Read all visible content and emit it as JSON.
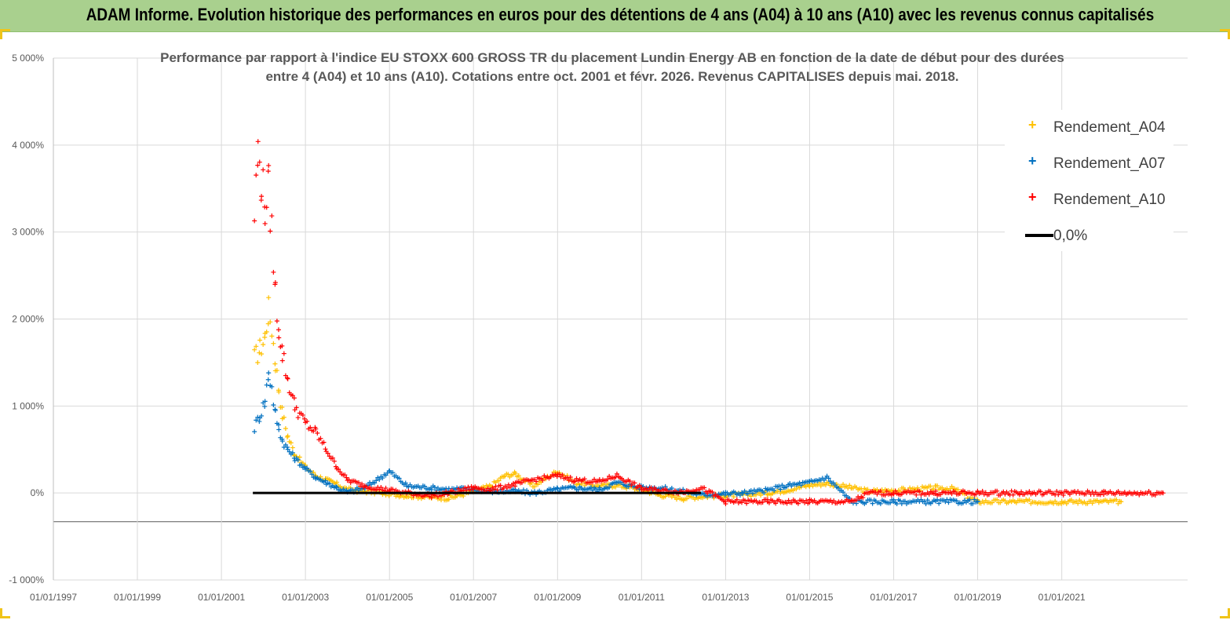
{
  "header": {
    "title": "ADAM Informe. Evolution historique des performances en euros pour des détentions de 4 ans (A04) à 10 ans (A10) avec les revenus connus capitalisés"
  },
  "chart_data": {
    "type": "scatter",
    "title_line1": "Performance par rapport à l'indice EU STOXX 600 GROSS TR  du placement Lundin Energy AB en fonction de la date de début pour des durées",
    "title_line2": "entre 4 (A04) et 10 ans (A10). Cotations entre oct. 2001 et févr. 2026. Revenus CAPITALISES depuis mai. 2018.",
    "xlabel": "",
    "ylabel": "",
    "xlim": [
      "1997-01-01",
      "2023-12-31"
    ],
    "ylim": [
      -1000,
      5000
    ],
    "grid": true,
    "x_ticks": [
      "01/01/1997",
      "01/01/1999",
      "01/01/2001",
      "01/01/2003",
      "01/01/2005",
      "01/01/2007",
      "01/01/2009",
      "01/01/2011",
      "01/01/2013",
      "01/01/2015",
      "01/01/2017",
      "01/01/2019",
      "01/01/2021"
    ],
    "y_ticks": [
      "-1 000%",
      "0%",
      "1 000%",
      "2 000%",
      "3 000%",
      "4 000%",
      "5 000%"
    ],
    "legend_position": "top-right",
    "series": [
      {
        "name": "Rendement_A04",
        "color": "#ffc000",
        "marker": "+",
        "points": [
          [
            "2001-10-15",
            1550
          ],
          [
            "2001-12-01",
            1650
          ],
          [
            "2002-01-15",
            1800
          ],
          [
            "2002-02-15",
            2100
          ],
          [
            "2002-03-15",
            1900
          ],
          [
            "2002-04-15",
            1500
          ],
          [
            "2002-05-15",
            1200
          ],
          [
            "2002-06-15",
            900
          ],
          [
            "2002-08-01",
            650
          ],
          [
            "2002-10-01",
            450
          ],
          [
            "2003-01-01",
            300
          ],
          [
            "2003-04-01",
            200
          ],
          [
            "2003-07-01",
            150
          ],
          [
            "2003-10-01",
            100
          ],
          [
            "2004-01-01",
            40
          ],
          [
            "2004-06-01",
            20
          ],
          [
            "2005-01-01",
            -10
          ],
          [
            "2005-06-01",
            -30
          ],
          [
            "2006-01-01",
            -50
          ],
          [
            "2006-06-01",
            -60
          ],
          [
            "2007-01-01",
            20
          ],
          [
            "2007-06-01",
            80
          ],
          [
            "2007-10-01",
            200
          ],
          [
            "2008-01-01",
            220
          ],
          [
            "2008-06-01",
            80
          ],
          [
            "2009-01-01",
            250
          ],
          [
            "2009-06-01",
            120
          ],
          [
            "2010-01-01",
            80
          ],
          [
            "2010-06-01",
            90
          ],
          [
            "2011-01-01",
            40
          ],
          [
            "2011-06-01",
            -20
          ],
          [
            "2012-01-01",
            -60
          ],
          [
            "2012-06-01",
            -40
          ],
          [
            "2013-01-01",
            -30
          ],
          [
            "2013-06-01",
            -20
          ],
          [
            "2014-01-01",
            0
          ],
          [
            "2014-06-01",
            30
          ],
          [
            "2015-01-01",
            90
          ],
          [
            "2015-06-01",
            110
          ],
          [
            "2016-01-01",
            60
          ],
          [
            "2016-06-01",
            20
          ],
          [
            "2017-01-01",
            30
          ],
          [
            "2017-06-01",
            40
          ],
          [
            "2018-01-01",
            60
          ],
          [
            "2018-06-01",
            50
          ],
          [
            "2019-01-01",
            -100
          ],
          [
            "2020-01-01",
            -100
          ],
          [
            "2021-01-01",
            -100
          ],
          [
            "2022-06-01",
            -100
          ]
        ]
      },
      {
        "name": "Rendement_A07",
        "color": "#0070c0",
        "marker": "+",
        "points": [
          [
            "2001-10-15",
            750
          ],
          [
            "2001-12-01",
            900
          ],
          [
            "2002-01-15",
            1050
          ],
          [
            "2002-02-15",
            1400
          ],
          [
            "2002-03-15",
            1200
          ],
          [
            "2002-04-15",
            900
          ],
          [
            "2002-05-15",
            750
          ],
          [
            "2002-06-15",
            600
          ],
          [
            "2002-08-01",
            500
          ],
          [
            "2002-10-01",
            400
          ],
          [
            "2003-01-01",
            280
          ],
          [
            "2003-04-01",
            180
          ],
          [
            "2003-07-01",
            120
          ],
          [
            "2003-10-01",
            60
          ],
          [
            "2004-01-01",
            10
          ],
          [
            "2004-06-01",
            60
          ],
          [
            "2005-01-01",
            250
          ],
          [
            "2005-06-01",
            80
          ],
          [
            "2006-01-01",
            60
          ],
          [
            "2006-06-01",
            40
          ],
          [
            "2007-01-01",
            50
          ],
          [
            "2007-06-01",
            20
          ],
          [
            "2008-01-01",
            20
          ],
          [
            "2008-06-01",
            0
          ],
          [
            "2009-01-01",
            40
          ],
          [
            "2009-06-01",
            60
          ],
          [
            "2010-01-01",
            40
          ],
          [
            "2010-06-01",
            120
          ],
          [
            "2011-01-01",
            60
          ],
          [
            "2011-06-01",
            60
          ],
          [
            "2012-01-01",
            20
          ],
          [
            "2012-06-01",
            -20
          ],
          [
            "2013-01-01",
            -10
          ],
          [
            "2013-06-01",
            0
          ],
          [
            "2014-01-01",
            30
          ],
          [
            "2014-06-01",
            80
          ],
          [
            "2015-01-01",
            120
          ],
          [
            "2015-06-01",
            180
          ],
          [
            "2016-01-01",
            -100
          ],
          [
            "2017-01-01",
            -100
          ],
          [
            "2018-01-01",
            -100
          ],
          [
            "2019-01-01",
            -100
          ]
        ]
      },
      {
        "name": "Rendement_A10",
        "color": "#ff0000",
        "marker": "+",
        "points": [
          [
            "2001-10-15",
            3200
          ],
          [
            "2001-11-15",
            3900
          ],
          [
            "2001-12-15",
            3600
          ],
          [
            "2002-01-15",
            3300
          ],
          [
            "2002-02-15",
            3500
          ],
          [
            "2002-03-15",
            3000
          ],
          [
            "2002-04-15",
            2300
          ],
          [
            "2002-05-15",
            1900
          ],
          [
            "2002-06-15",
            1600
          ],
          [
            "2002-08-01",
            1300
          ],
          [
            "2002-10-01",
            1000
          ],
          [
            "2003-01-01",
            800
          ],
          [
            "2003-04-01",
            700
          ],
          [
            "2003-07-01",
            500
          ],
          [
            "2003-10-01",
            300
          ],
          [
            "2004-01-01",
            150
          ],
          [
            "2004-06-01",
            80
          ],
          [
            "2005-01-01",
            30
          ],
          [
            "2005-06-01",
            0
          ],
          [
            "2006-01-01",
            -30
          ],
          [
            "2006-06-01",
            0
          ],
          [
            "2007-01-01",
            60
          ],
          [
            "2007-06-01",
            40
          ],
          [
            "2008-01-01",
            100
          ],
          [
            "2008-06-01",
            150
          ],
          [
            "2009-01-01",
            200
          ],
          [
            "2009-06-01",
            150
          ],
          [
            "2010-01-01",
            130
          ],
          [
            "2010-06-01",
            200
          ],
          [
            "2011-01-01",
            50
          ],
          [
            "2011-06-01",
            30
          ],
          [
            "2012-01-01",
            10
          ],
          [
            "2012-06-01",
            60
          ],
          [
            "2013-01-01",
            -100
          ],
          [
            "2014-01-01",
            -100
          ],
          [
            "2015-01-01",
            -100
          ],
          [
            "2016-01-01",
            -100
          ],
          [
            "2016-06-01",
            0
          ],
          [
            "2017-01-01",
            0
          ],
          [
            "2018-01-01",
            0
          ],
          [
            "2019-01-01",
            0
          ],
          [
            "2020-01-01",
            0
          ],
          [
            "2021-01-01",
            0
          ],
          [
            "2022-01-01",
            0
          ],
          [
            "2023-06-01",
            0
          ]
        ]
      },
      {
        "name": "0,0%",
        "color": "#000000",
        "marker": "line",
        "points": [
          [
            "2001-10-01",
            0
          ],
          [
            "2012-06-01",
            0
          ]
        ]
      }
    ]
  }
}
